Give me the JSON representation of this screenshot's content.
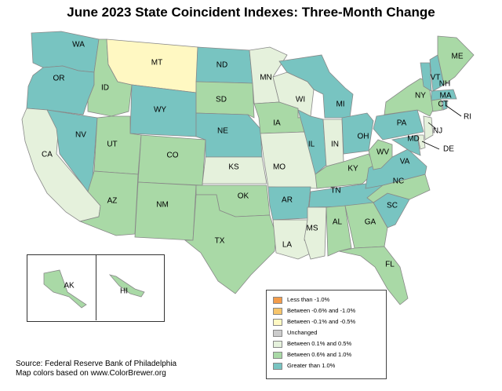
{
  "title": "June 2023 State Coincident Indexes: Three-Month Change",
  "source_line1": "Source: Federal Reserve Bank of Philadelphia",
  "source_line2": "Map colors based on www.ColorBrewer.org",
  "colors": {
    "less_than_neg1": "#f39c4a",
    "neg06_neg10": "#f7c56b",
    "neg01_neg05": "#fff8c2",
    "unchanged": "#cccccc",
    "pos01_05": "#e5f1dc",
    "pos06_10": "#a9d9a6",
    "gt1": "#78c4c1"
  },
  "legend": [
    {
      "label": "Less than -1.0%",
      "category": "less_than_neg1"
    },
    {
      "label": "Between -0.6% and -1.0%",
      "category": "neg06_neg10"
    },
    {
      "label": "Between -0.1% and -0.5%",
      "category": "neg01_neg05"
    },
    {
      "label": "Unchanged",
      "category": "unchanged"
    },
    {
      "label": "Between 0.1% and 0.5%",
      "category": "pos01_05"
    },
    {
      "label": "Between 0.6% and 1.0%",
      "category": "pos06_10"
    },
    {
      "label": "Greater than 1.0%",
      "category": "gt1"
    }
  ],
  "states": [
    {
      "abbr": "WA",
      "category": "gt1"
    },
    {
      "abbr": "OR",
      "category": "gt1"
    },
    {
      "abbr": "CA",
      "category": "pos01_05"
    },
    {
      "abbr": "NV",
      "category": "gt1"
    },
    {
      "abbr": "ID",
      "category": "pos06_10"
    },
    {
      "abbr": "MT",
      "category": "neg01_neg05"
    },
    {
      "abbr": "WY",
      "category": "gt1"
    },
    {
      "abbr": "UT",
      "category": "pos06_10"
    },
    {
      "abbr": "AZ",
      "category": "pos06_10"
    },
    {
      "abbr": "CO",
      "category": "pos06_10"
    },
    {
      "abbr": "NM",
      "category": "pos06_10"
    },
    {
      "abbr": "ND",
      "category": "gt1"
    },
    {
      "abbr": "SD",
      "category": "pos06_10"
    },
    {
      "abbr": "NE",
      "category": "gt1"
    },
    {
      "abbr": "KS",
      "category": "pos01_05"
    },
    {
      "abbr": "OK",
      "category": "pos06_10"
    },
    {
      "abbr": "TX",
      "category": "pos06_10"
    },
    {
      "abbr": "MN",
      "category": "pos01_05"
    },
    {
      "abbr": "IA",
      "category": "pos06_10"
    },
    {
      "abbr": "MO",
      "category": "pos01_05"
    },
    {
      "abbr": "AR",
      "category": "gt1"
    },
    {
      "abbr": "LA",
      "category": "pos01_05"
    },
    {
      "abbr": "WI",
      "category": "pos01_05"
    },
    {
      "abbr": "IL",
      "category": "gt1"
    },
    {
      "abbr": "MI",
      "category": "gt1"
    },
    {
      "abbr": "IN",
      "category": "pos01_05"
    },
    {
      "abbr": "OH",
      "category": "gt1"
    },
    {
      "abbr": "KY",
      "category": "pos06_10"
    },
    {
      "abbr": "TN",
      "category": "gt1"
    },
    {
      "abbr": "MS",
      "category": "pos01_05"
    },
    {
      "abbr": "AL",
      "category": "pos06_10"
    },
    {
      "abbr": "GA",
      "category": "pos06_10"
    },
    {
      "abbr": "FL",
      "category": "pos06_10"
    },
    {
      "abbr": "SC",
      "category": "gt1"
    },
    {
      "abbr": "NC",
      "category": "pos06_10"
    },
    {
      "abbr": "VA",
      "category": "gt1"
    },
    {
      "abbr": "WV",
      "category": "pos06_10"
    },
    {
      "abbr": "MD",
      "category": "gt1"
    },
    {
      "abbr": "DE",
      "category": "pos01_05"
    },
    {
      "abbr": "PA",
      "category": "gt1"
    },
    {
      "abbr": "NJ",
      "category": "pos01_05"
    },
    {
      "abbr": "NY",
      "category": "pos06_10"
    },
    {
      "abbr": "CT",
      "category": "pos06_10"
    },
    {
      "abbr": "RI",
      "category": "gt1"
    },
    {
      "abbr": "MA",
      "category": "gt1"
    },
    {
      "abbr": "VT",
      "category": "gt1"
    },
    {
      "abbr": "NH",
      "category": "gt1"
    },
    {
      "abbr": "ME",
      "category": "pos06_10"
    },
    {
      "abbr": "AK",
      "category": "pos06_10"
    },
    {
      "abbr": "HI",
      "category": "pos06_10"
    }
  ]
}
